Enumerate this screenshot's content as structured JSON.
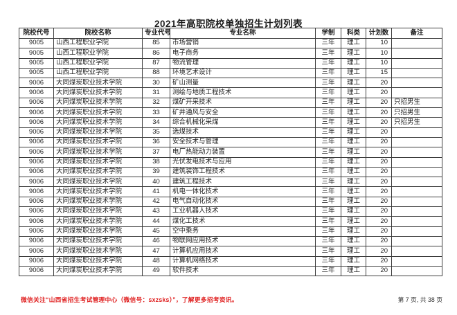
{
  "page": {
    "title": "2021年高职院校单独招生计划列表"
  },
  "table": {
    "columns": [
      "院校代号",
      "院校名称",
      "专业代号",
      "专业名称",
      "学制",
      "科类",
      "计划数",
      "备注"
    ],
    "rows": [
      [
        "9005",
        "山西工程职业学院",
        "85",
        "市场营销",
        "三年",
        "理工",
        "10",
        ""
      ],
      [
        "9005",
        "山西工程职业学院",
        "86",
        "电子商务",
        "三年",
        "理工",
        "10",
        ""
      ],
      [
        "9005",
        "山西工程职业学院",
        "87",
        "物流管理",
        "三年",
        "理工",
        "10",
        ""
      ],
      [
        "9005",
        "山西工程职业学院",
        "88",
        "环境艺术设计",
        "三年",
        "理工",
        "15",
        ""
      ],
      [
        "9006",
        "大同煤炭职业技术学院",
        "30",
        "矿山测量",
        "三年",
        "理工",
        "20",
        ""
      ],
      [
        "9006",
        "大同煤炭职业技术学院",
        "31",
        "测绘与地质工程技术",
        "三年",
        "理工",
        "20",
        ""
      ],
      [
        "9006",
        "大同煤炭职业技术学院",
        "32",
        "煤矿开采技术",
        "三年",
        "理工",
        "20",
        "只招男生"
      ],
      [
        "9006",
        "大同煤炭职业技术学院",
        "33",
        "矿井通风与安全",
        "三年",
        "理工",
        "20",
        "只招男生"
      ],
      [
        "9006",
        "大同煤炭职业技术学院",
        "34",
        "综合机械化采煤",
        "三年",
        "理工",
        "20",
        "只招男生"
      ],
      [
        "9006",
        "大同煤炭职业技术学院",
        "35",
        "选煤技术",
        "三年",
        "理工",
        "20",
        ""
      ],
      [
        "9006",
        "大同煤炭职业技术学院",
        "36",
        "安全技术与管理",
        "三年",
        "理工",
        "20",
        ""
      ],
      [
        "9006",
        "大同煤炭职业技术学院",
        "37",
        "电厂热能动力装置",
        "三年",
        "理工",
        "20",
        ""
      ],
      [
        "9006",
        "大同煤炭职业技术学院",
        "38",
        "光伏发电技术与应用",
        "三年",
        "理工",
        "20",
        ""
      ],
      [
        "9006",
        "大同煤炭职业技术学院",
        "39",
        "建筑装饰工程技术",
        "三年",
        "理工",
        "20",
        ""
      ],
      [
        "9006",
        "大同煤炭职业技术学院",
        "40",
        "建筑工程技术",
        "三年",
        "理工",
        "20",
        ""
      ],
      [
        "9006",
        "大同煤炭职业技术学院",
        "41",
        "机电一体化技术",
        "三年",
        "理工",
        "20",
        ""
      ],
      [
        "9006",
        "大同煤炭职业技术学院",
        "42",
        "电气自动化技术",
        "三年",
        "理工",
        "20",
        ""
      ],
      [
        "9006",
        "大同煤炭职业技术学院",
        "43",
        "工业机器人技术",
        "三年",
        "理工",
        "20",
        ""
      ],
      [
        "9006",
        "大同煤炭职业技术学院",
        "44",
        "煤化工技术",
        "三年",
        "理工",
        "20",
        ""
      ],
      [
        "9006",
        "大同煤炭职业技术学院",
        "45",
        "空中乘务",
        "三年",
        "理工",
        "20",
        ""
      ],
      [
        "9006",
        "大同煤炭职业技术学院",
        "46",
        "物联网应用技术",
        "三年",
        "理工",
        "20",
        ""
      ],
      [
        "9006",
        "大同煤炭职业技术学院",
        "47",
        "计算机应用技术",
        "三年",
        "理工",
        "20",
        ""
      ],
      [
        "9006",
        "大同煤炭职业技术学院",
        "48",
        "计算机网络技术",
        "三年",
        "理工",
        "20",
        ""
      ],
      [
        "9006",
        "大同煤炭职业技术学院",
        "49",
        "软件技术",
        "三年",
        "理工",
        "20",
        ""
      ]
    ]
  },
  "footer": {
    "notice": "微信关注“山西省招生考试管理中心（微信号：sxzsks）”，了解更多招考资讯。",
    "page_info": "第 7 页, 共 38 页"
  },
  "colors": {
    "notice_red": "#e02222",
    "border": "#3c3c3c",
    "text": "#222222"
  }
}
